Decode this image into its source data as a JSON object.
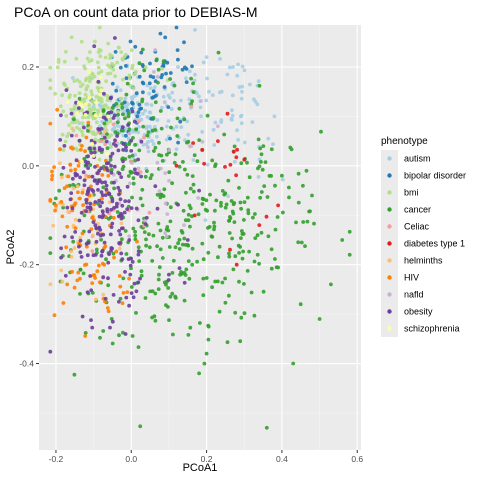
{
  "chart_data": {
    "type": "scatter",
    "title": "PCoA on count data prior to DEBIAS-M",
    "xlabel": "PCoA1",
    "ylabel": "PCoA2",
    "xlim": [
      -0.245,
      0.61
    ],
    "ylim": [
      -0.575,
      0.285
    ],
    "x_ticks": [
      -0.2,
      0.0,
      0.2,
      0.4,
      0.6
    ],
    "x_tick_labels": [
      "-0.2",
      "0.0",
      "0.2",
      "0.4",
      "0.6"
    ],
    "y_ticks": [
      0.2,
      0.0,
      -0.2,
      -0.4
    ],
    "y_tick_labels": [
      "0.2",
      "0.0",
      "-0.2",
      "-0.4"
    ],
    "grid": true,
    "panel_background": "#ebebeb",
    "legend": {
      "title": "phenotype",
      "position": "right"
    },
    "series": [
      {
        "name": "autism",
        "color": "#a6cee3",
        "clusters": [
          {
            "center": [
              -0.01,
              0.1
            ],
            "spread": [
              0.06,
              0.04
            ],
            "count": 160
          },
          {
            "center": [
              0.18,
              0.14
            ],
            "spread": [
              0.08,
              0.05
            ],
            "count": 60
          },
          {
            "center": [
              0.3,
              0.05
            ],
            "spread": [
              0.07,
              0.07
            ],
            "count": 30
          }
        ],
        "points": [
          [
            0.27,
            0.2
          ],
          [
            0.33,
            0.13
          ],
          [
            0.38,
            0.1
          ],
          [
            0.2,
            0.22
          ],
          [
            0.24,
            0.15
          ]
        ]
      },
      {
        "name": "bipolar disorder",
        "color": "#1f78b4",
        "clusters": [
          {
            "center": [
              0.02,
              0.15
            ],
            "spread": [
              0.05,
              0.06
            ],
            "count": 55
          },
          {
            "center": [
              0.08,
              0.2
            ],
            "spread": [
              0.05,
              0.04
            ],
            "count": 25
          }
        ],
        "points": [
          [
            0.12,
            0.28
          ],
          [
            0.14,
            0.25
          ],
          [
            0.09,
            0.26
          ]
        ]
      },
      {
        "name": "bmi",
        "color": "#b2df8a",
        "clusters": [
          {
            "center": [
              -0.11,
              0.12
            ],
            "spread": [
              0.045,
              0.05
            ],
            "count": 170
          },
          {
            "center": [
              -0.05,
              0.2
            ],
            "spread": [
              0.05,
              0.03
            ],
            "count": 50
          }
        ],
        "points": []
      },
      {
        "name": "cancer",
        "color": "#33a02c",
        "clusters": [
          {
            "center": [
              0.05,
              -0.1
            ],
            "spread": [
              0.13,
              0.13
            ],
            "count": 280
          },
          {
            "center": [
              0.3,
              -0.12
            ],
            "spread": [
              0.11,
              0.1
            ],
            "count": 130
          },
          {
            "center": [
              0.02,
              0.05
            ],
            "spread": [
              0.07,
              0.07
            ],
            "count": 60
          }
        ],
        "points": [
          [
            0.56,
            -0.15
          ],
          [
            0.58,
            -0.18
          ],
          [
            0.43,
            -0.4
          ],
          [
            0.36,
            -0.53
          ],
          [
            0.18,
            -0.42
          ],
          [
            0.2,
            -0.38
          ],
          [
            0.5,
            -0.31
          ],
          [
            0.45,
            -0.28
          ],
          [
            0.53,
            -0.24
          ],
          [
            0.48,
            -0.06
          ],
          [
            0.4,
            -0.02
          ]
        ]
      },
      {
        "name": "Celiac",
        "color": "#fb9a99",
        "clusters": [
          {
            "center": [
              -0.05,
              -0.05
            ],
            "spread": [
              0.08,
              0.1
            ],
            "count": 20
          }
        ],
        "points": [
          [
            0.02,
            0.09
          ],
          [
            -0.08,
            0.05
          ],
          [
            -0.12,
            -0.02
          ],
          [
            0.16,
            0.12
          ]
        ]
      },
      {
        "name": "diabetes type 1",
        "color": "#e31a1c",
        "clusters": [
          {
            "center": [
              0.25,
              -0.05
            ],
            "spread": [
              0.09,
              0.08
            ],
            "count": 14
          }
        ],
        "points": [
          [
            0.39,
            -0.08
          ],
          [
            0.34,
            -0.12
          ],
          [
            0.28,
            -0.2
          ],
          [
            0.12,
            0.0
          ],
          [
            0.23,
            0.05
          ]
        ]
      },
      {
        "name": "helminths",
        "color": "#fdbf6f",
        "clusters": [
          {
            "center": [
              -0.12,
              -0.08
            ],
            "spread": [
              0.045,
              0.07
            ],
            "count": 45
          }
        ],
        "points": []
      },
      {
        "name": "HIV",
        "color": "#ff7f00",
        "clusters": [
          {
            "center": [
              -0.14,
              -0.05
            ],
            "spread": [
              0.04,
              0.08
            ],
            "count": 65
          },
          {
            "center": [
              -0.08,
              -0.2
            ],
            "spread": [
              0.05,
              0.06
            ],
            "count": 40
          }
        ],
        "points": [
          [
            -0.21,
            -0.02
          ],
          [
            -0.2,
            -0.08
          ],
          [
            -0.17,
            -0.24
          ],
          [
            -0.14,
            0.0
          ]
        ]
      },
      {
        "name": "nafld",
        "color": "#cab2d6",
        "clusters": [
          {
            "center": [
              0.08,
              0.0
            ],
            "spread": [
              0.08,
              0.09
            ],
            "count": 30
          }
        ],
        "points": [
          [
            0.23,
            0.08
          ],
          [
            0.14,
            -0.12
          ],
          [
            0.06,
            0.19
          ]
        ]
      },
      {
        "name": "obesity",
        "color": "#6a3d9a",
        "clusters": [
          {
            "center": [
              -0.08,
              -0.04
            ],
            "spread": [
              0.055,
              0.09
            ],
            "count": 190
          },
          {
            "center": [
              -0.02,
              -0.18
            ],
            "spread": [
              0.06,
              0.07
            ],
            "count": 55
          }
        ],
        "points": [
          [
            0.1,
            -0.22
          ],
          [
            0.15,
            -0.15
          ],
          [
            0.18,
            -0.05
          ]
        ]
      },
      {
        "name": "schizophrenia",
        "color": "#ffff99",
        "clusters": [
          {
            "center": [
              -0.09,
              0.11
            ],
            "spread": [
              0.04,
              0.04
            ],
            "count": 18
          }
        ],
        "points": [
          [
            -0.13,
            0.12
          ],
          [
            -0.1,
            0.02
          ]
        ]
      }
    ]
  }
}
